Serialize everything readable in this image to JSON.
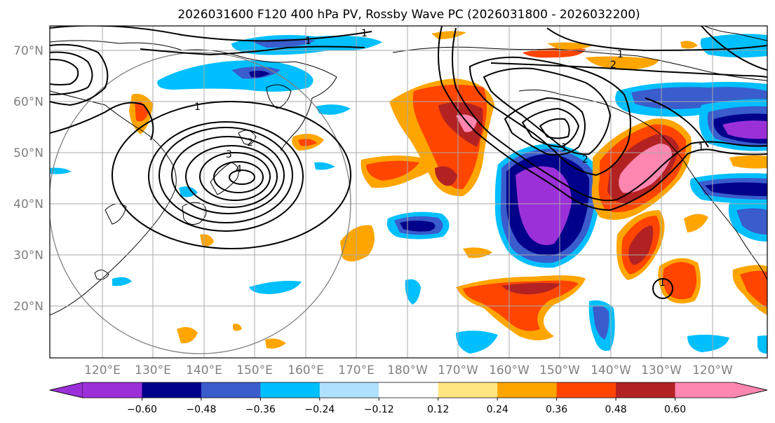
{
  "title": "2026031600 F120 400 hPa PV, Rossby Wave PC (2026031800 - 2026032200)",
  "lat_labels": [
    "70°N",
    "60°N",
    "50°N",
    "40°N",
    "30°N",
    "20°N"
  ],
  "lon_labels": [
    "120°E",
    "130°E",
    "140°E",
    "150°E",
    "160°E",
    "170°E",
    "180°W",
    "170°W",
    "160°W",
    "150°W",
    "140°W",
    "130°W",
    "120°W"
  ],
  "colorbar": {
    "colors": [
      "#9b30d9",
      "#00008b",
      "#3a5ccc",
      "#00bfff",
      "#b0e2ff",
      "#ffffff",
      "#ffe680",
      "#ffa500",
      "#ff4500",
      "#b22222",
      "#ff86b0"
    ],
    "tick_labels": [
      "−0.60",
      "−0.48",
      "−0.36",
      "−0.24",
      "−0.12",
      "0.12",
      "0.24",
      "0.36",
      "0.48",
      "0.60"
    ]
  },
  "contour_labels": [
    "1",
    "1",
    "1",
    "2",
    "3",
    "4",
    "1",
    "2",
    "1",
    "2",
    "1",
    "1"
  ],
  "colors": {
    "grid": "#aaaaaa",
    "axis_label": "#808080",
    "range_ring": "#808080"
  }
}
